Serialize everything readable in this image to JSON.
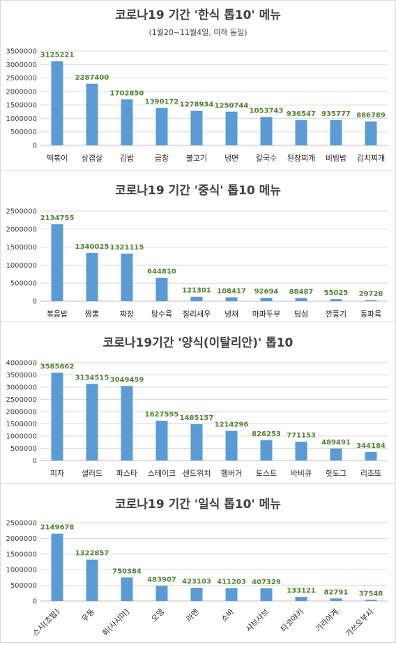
{
  "colors": {
    "bar": "#5b9bd5",
    "label": "#548235",
    "axis_text": "#404040",
    "grid": "#d9d9d9"
  },
  "chart_data": [
    {
      "type": "bar",
      "title": "코로나19 기간 '한식 톱10' 메뉴",
      "subtitle": "(1월20~11월4일, 이하 동일)",
      "categories": [
        "떡볶이",
        "삼겹살",
        "김밥",
        "곱창",
        "불고기",
        "냉면",
        "칼국수",
        "된장찌개",
        "비빔밥",
        "김치찌개"
      ],
      "values": [
        3125221,
        2287400,
        1702850,
        1390172,
        1278934,
        1250744,
        1053743,
        936547,
        935777,
        886789
      ],
      "yticks": [
        0,
        500000,
        1000000,
        1500000,
        2000000,
        2500000,
        3000000,
        3500000
      ],
      "ylim": [
        0,
        3500000
      ],
      "grid": true,
      "xtick_rotation": 0
    },
    {
      "type": "bar",
      "title": "코로나19 기간 '중식' 톱10 메뉴",
      "categories": [
        "볶음밥",
        "짬뽕",
        "짜장",
        "탕수육",
        "칠리새우",
        "냉채",
        "마파두부",
        "딤섬",
        "깐풍기",
        "동파육"
      ],
      "values": [
        2134755,
        1340025,
        1321115,
        644810,
        121301,
        108417,
        92694,
        88487,
        55025,
        29728
      ],
      "yticks": [
        0,
        500000,
        1000000,
        1500000,
        2000000,
        2500000
      ],
      "ylim": [
        0,
        2500000
      ],
      "grid": true,
      "xtick_rotation": 0
    },
    {
      "type": "bar",
      "title": "코로나19기간 '양식(이탈리안)' 톱10",
      "categories": [
        "피자",
        "샐러드",
        "파스타",
        "스테이크",
        "샌드위치",
        "햄버거",
        "토스트",
        "바비큐",
        "핫도그",
        "리조또"
      ],
      "values": [
        3585862,
        3134515,
        3049459,
        1627595,
        1485157,
        1214296,
        826253,
        771153,
        489491,
        344184
      ],
      "yticks": [
        0,
        500000,
        1000000,
        1500000,
        2000000,
        2500000,
        3000000,
        3500000,
        4000000
      ],
      "ylim": [
        0,
        4000000
      ],
      "grid": true,
      "xtick_rotation": 0
    },
    {
      "type": "bar",
      "title": "코로나19 기간 '일식 톱10' 메뉴",
      "categories": [
        "스시(초밥)",
        "우동",
        "회(사시미)",
        "오뎅",
        "라멘",
        "소바",
        "샤브샤브",
        "타코야키",
        "가라아게",
        "가쓰오부시"
      ],
      "values": [
        2149678,
        1322857,
        750384,
        483907,
        423103,
        411203,
        407329,
        133121,
        82791,
        37548
      ],
      "yticks": [
        0,
        500000,
        1000000,
        1500000,
        2000000,
        2500000
      ],
      "ylim": [
        0,
        2500000
      ],
      "grid": true,
      "xtick_rotation": -45
    }
  ]
}
